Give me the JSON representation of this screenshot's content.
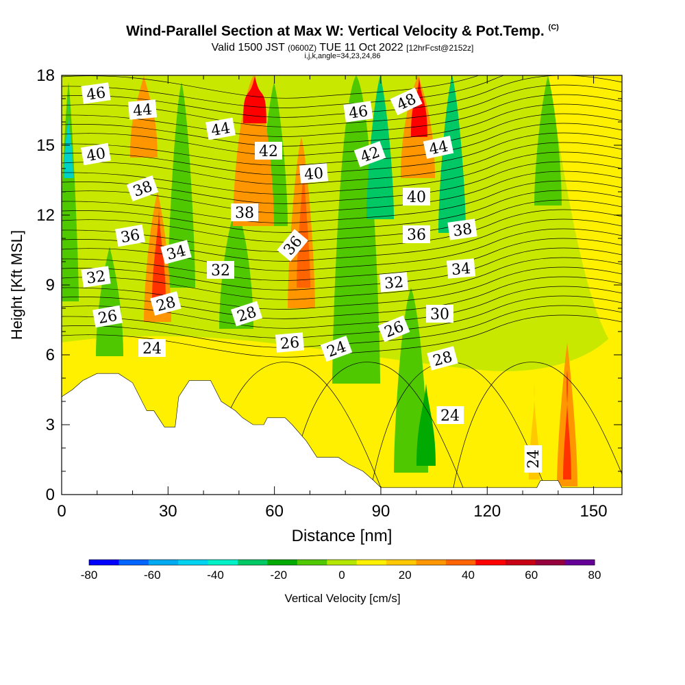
{
  "header": {
    "title": "Wind-Parallel Section at Max W: Vertical Velocity & Pot.Temp.",
    "copyright": "(C)",
    "subtitle_main": "Valid 1500 JST",
    "subtitle_z": "(0600Z)",
    "subtitle_date": "TUE 11 Oct 2022",
    "subtitle_fcst": "[12hrFcst@2152z]",
    "meta": "i,j,k,angle=34,23,24,86"
  },
  "chart_data": {
    "type": "heatmap",
    "xlabel": "Distance [nm]",
    "ylabel": "Height [Kft MSL]",
    "xlim": [
      0,
      158
    ],
    "ylim": [
      0,
      18
    ],
    "x_ticks": [
      "0",
      "30",
      "60",
      "90",
      "120",
      "150"
    ],
    "y_ticks": [
      "0",
      "3",
      "6",
      "9",
      "12",
      "15",
      "18"
    ],
    "colorbar": {
      "label": "Vertical Velocity [cm/s]",
      "tick_labels": [
        "-80",
        "-60",
        "-40",
        "-20",
        "0",
        "20",
        "40",
        "60",
        "80"
      ],
      "bins": [
        -80,
        -70,
        -60,
        -50,
        -40,
        -30,
        -20,
        -10,
        0,
        10,
        20,
        30,
        40,
        50,
        60,
        70,
        80
      ],
      "colors": [
        "#0000ff",
        "#0064ff",
        "#00aaf0",
        "#00d2f0",
        "#00f0c8",
        "#00c864",
        "#00aa00",
        "#50c800",
        "#b4e600",
        "#fff000",
        "#ffc800",
        "#ff9600",
        "#ff6400",
        "#ff0000",
        "#c80014",
        "#96003c",
        "#640096"
      ]
    },
    "terrain_kft": [
      [
        0,
        4.2
      ],
      [
        3,
        4.5
      ],
      [
        6,
        4.9
      ],
      [
        10,
        5.2
      ],
      [
        16,
        5.2
      ],
      [
        20,
        4.8
      ],
      [
        24,
        3.6
      ],
      [
        26,
        3.6
      ],
      [
        29,
        2.9
      ],
      [
        32,
        2.9
      ],
      [
        33,
        4.2
      ],
      [
        36,
        4.9
      ],
      [
        42,
        4.9
      ],
      [
        45,
        4.0
      ],
      [
        49,
        3.6
      ],
      [
        51,
        3.3
      ],
      [
        54,
        3.0
      ],
      [
        57,
        3.0
      ],
      [
        58,
        3.3
      ],
      [
        63,
        3.3
      ],
      [
        65,
        3.0
      ],
      [
        69,
        2.3
      ],
      [
        72,
        1.6
      ],
      [
        78,
        1.6
      ],
      [
        81,
        1.3
      ],
      [
        85,
        1.0
      ],
      [
        88,
        0.6
      ],
      [
        90,
        0.3
      ],
      [
        134,
        0.3
      ],
      [
        135,
        0.6
      ],
      [
        140,
        0.6
      ],
      [
        141,
        0.3
      ],
      [
        158,
        0.3
      ]
    ],
    "theta_contour_labels": [
      "46",
      "44",
      "44",
      "46",
      "48",
      "40",
      "42",
      "42",
      "44",
      "40",
      "38",
      "40",
      "38",
      "38",
      "36",
      "36",
      "36",
      "34",
      "34",
      "32",
      "32",
      "32",
      "28",
      "28",
      "30",
      "26",
      "26",
      "28",
      "26",
      "24",
      "24",
      "24",
      "24"
    ]
  }
}
